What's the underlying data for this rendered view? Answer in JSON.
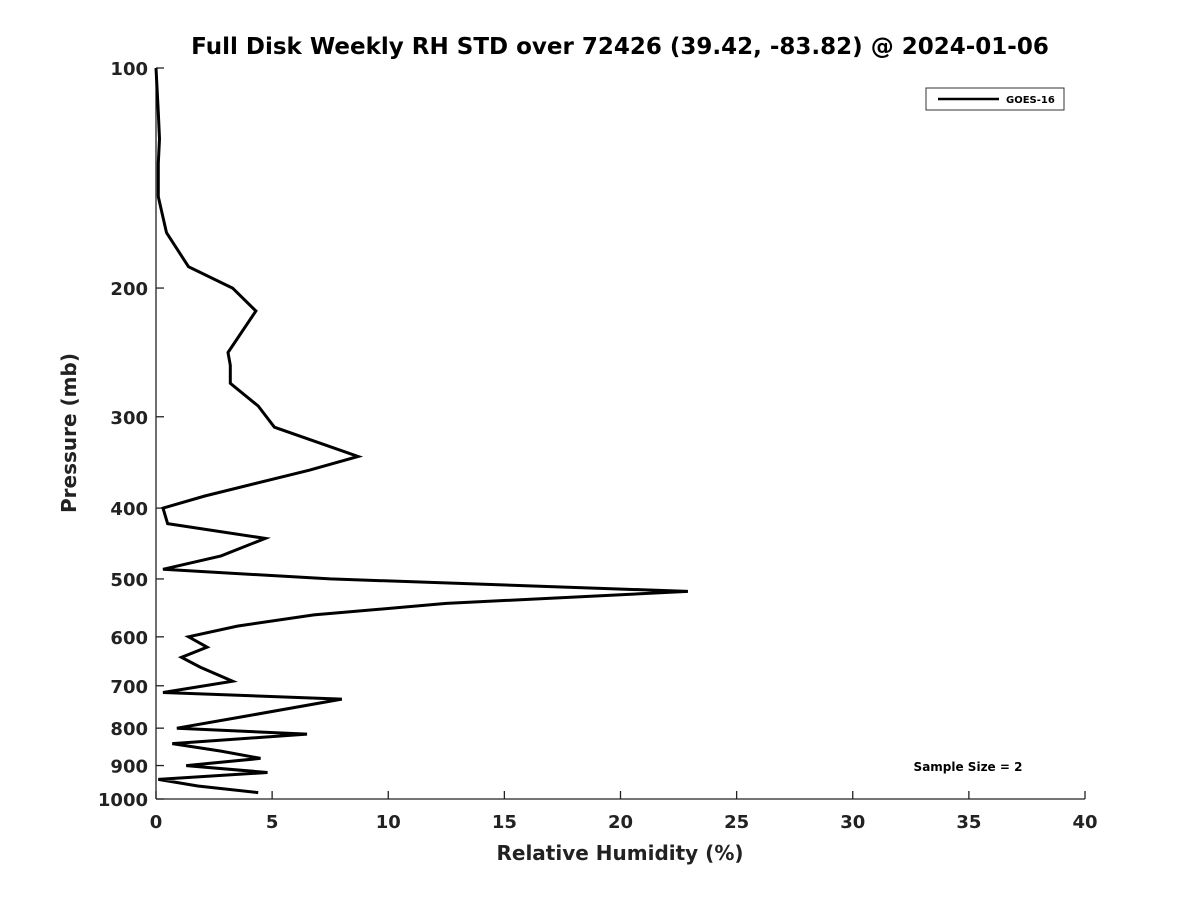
{
  "chart_data": {
    "type": "line",
    "title": "Full Disk Weekly RH STD over 72426 (39.42, -83.82) @ 2024-01-06",
    "xlabel": "Relative Humidity (%)",
    "ylabel": "Pressure (mb)",
    "xlim": [
      0,
      40
    ],
    "ylim": [
      100,
      1000
    ],
    "yscale": "log",
    "y_reversed": true,
    "x_ticks": [
      0,
      5,
      10,
      15,
      20,
      25,
      30,
      35,
      40
    ],
    "y_ticks": [
      100,
      200,
      300,
      400,
      500,
      600,
      700,
      800,
      900,
      1000
    ],
    "grid": false,
    "legend_position": "top-right",
    "annotation": "Sample Size = 2",
    "series": [
      {
        "name": "GOES-16",
        "color": "#000000",
        "points": [
          [
            0.0,
            100
          ],
          [
            0.1,
            115
          ],
          [
            0.15,
            125
          ],
          [
            0.1,
            135
          ],
          [
            0.1,
            150
          ],
          [
            0.45,
            168
          ],
          [
            1.4,
            187
          ],
          [
            3.3,
            200
          ],
          [
            4.3,
            215
          ],
          [
            3.1,
            245
          ],
          [
            3.2,
            255
          ],
          [
            3.2,
            270
          ],
          [
            4.4,
            290
          ],
          [
            5.1,
            310
          ],
          [
            8.7,
            340
          ],
          [
            6.6,
            355
          ],
          [
            2.1,
            385
          ],
          [
            0.3,
            400
          ],
          [
            0.5,
            420
          ],
          [
            4.7,
            440
          ],
          [
            2.8,
            465
          ],
          [
            0.3,
            485
          ],
          [
            7.5,
            500
          ],
          [
            22.9,
            520
          ],
          [
            12.5,
            540
          ],
          [
            6.8,
            560
          ],
          [
            3.5,
            580
          ],
          [
            1.4,
            600
          ],
          [
            2.2,
            620
          ],
          [
            1.1,
            640
          ],
          [
            1.9,
            660
          ],
          [
            3.3,
            690
          ],
          [
            0.3,
            715
          ],
          [
            8.0,
            730
          ],
          [
            3.9,
            770
          ],
          [
            0.9,
            800
          ],
          [
            6.5,
            815
          ],
          [
            0.7,
            840
          ],
          [
            2.8,
            860
          ],
          [
            4.5,
            880
          ],
          [
            1.3,
            900
          ],
          [
            4.8,
            920
          ],
          [
            0.1,
            940
          ],
          [
            1.8,
            960
          ],
          [
            4.4,
            980
          ]
        ]
      }
    ]
  }
}
